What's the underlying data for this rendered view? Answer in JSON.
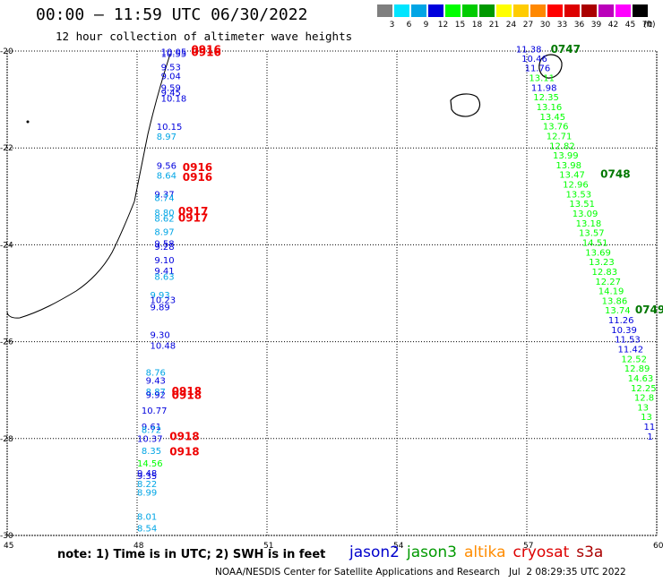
{
  "header": {
    "title": "00:00 – 11:59 UTC 06/30/2022",
    "subtitle": "12 hour collection of altimeter wave heights"
  },
  "colorbar": {
    "unit": "(ft)",
    "bins": [
      {
        "label": "3",
        "color": "#7f7f7f"
      },
      {
        "label": "6",
        "color": "#00e5ff"
      },
      {
        "label": "9",
        "color": "#00a5e5"
      },
      {
        "label": "12",
        "color": "#0000dd"
      },
      {
        "label": "15",
        "color": "#00ff00"
      },
      {
        "label": "18",
        "color": "#00cc00"
      },
      {
        "label": "21",
        "color": "#009900"
      },
      {
        "label": "24",
        "color": "#ffff00"
      },
      {
        "label": "27",
        "color": "#ffcc00"
      },
      {
        "label": "30",
        "color": "#ff8800"
      },
      {
        "label": "33",
        "color": "#ff0000"
      },
      {
        "label": "36",
        "color": "#dd0000"
      },
      {
        "label": "39",
        "color": "#aa0000"
      },
      {
        "label": "42",
        "color": "#bb00bb"
      },
      {
        "label": "45",
        "color": "#ff00ff"
      },
      {
        "label": "70",
        "color": "#000000"
      }
    ]
  },
  "footer": {
    "note": "note: 1) Time is in UTC; 2) SWH is in feet",
    "credit": "NOAA/NESDIS Center for Satellite Applications and Research   Jul  2 08:29:35 UTC 2022"
  },
  "legend": [
    {
      "name": "jason2",
      "color": "#0000cc"
    },
    {
      "name": "jason3",
      "color": "#009900"
    },
    {
      "name": "altika",
      "color": "#ff8c00"
    },
    {
      "name": "cryosat",
      "color": "#dd0000"
    },
    {
      "name": "s3a",
      "color": "#aa0000"
    }
  ],
  "chart_data": {
    "type": "scatter",
    "title": "12 hour collection of altimeter wave heights",
    "xlim": [
      45,
      60
    ],
    "ylim": [
      -30,
      -20
    ],
    "x_ticks": [
      45,
      48,
      51,
      54,
      57,
      60
    ],
    "y_ticks": [
      -20,
      -22,
      -24,
      -26,
      -28,
      -30
    ],
    "grid": true,
    "track_a": [
      {
        "lon": 48.55,
        "lat": -20.12,
        "v": "10.55",
        "c": "#0000dd"
      },
      {
        "lon": 48.55,
        "lat": -20.08,
        "v": "10.05",
        "c": "#0000dd"
      },
      {
        "lon": 48.55,
        "lat": -20.4,
        "v": "9.53",
        "c": "#0000dd"
      },
      {
        "lon": 48.55,
        "lat": -20.58,
        "v": "9.04",
        "c": "#0000dd"
      },
      {
        "lon": 48.55,
        "lat": -20.82,
        "v": "9.59",
        "c": "#0000dd"
      },
      {
        "lon": 48.55,
        "lat": -20.92,
        "v": "9.45",
        "c": "#0000dd"
      },
      {
        "lon": 48.55,
        "lat": -21.04,
        "v": "10.18",
        "c": "#0000dd"
      },
      {
        "lon": 48.45,
        "lat": -21.63,
        "v": "10.15",
        "c": "#0000dd"
      },
      {
        "lon": 48.45,
        "lat": -21.83,
        "v": "8.97",
        "c": "#00a5e5"
      },
      {
        "lon": 48.45,
        "lat": -22.43,
        "v": "9.56",
        "c": "#0000dd"
      },
      {
        "lon": 48.45,
        "lat": -22.63,
        "v": "8.64",
        "c": "#00a5e5"
      },
      {
        "lon": 48.4,
        "lat": -23.02,
        "v": "9.37",
        "c": "#0000dd"
      },
      {
        "lon": 48.4,
        "lat": -23.1,
        "v": "8.74",
        "c": "#00a5e5"
      },
      {
        "lon": 48.4,
        "lat": -23.4,
        "v": "8.80",
        "c": "#00a5e5"
      },
      {
        "lon": 48.4,
        "lat": -23.52,
        "v": "8.62",
        "c": "#00a5e5"
      },
      {
        "lon": 48.4,
        "lat": -23.8,
        "v": "8.97",
        "c": "#00a5e5"
      },
      {
        "lon": 48.4,
        "lat": -24.04,
        "v": "9.58",
        "c": "#0000dd"
      },
      {
        "lon": 48.4,
        "lat": -24.1,
        "v": "9.28",
        "c": "#0000dd"
      },
      {
        "lon": 48.4,
        "lat": -24.38,
        "v": "9.10",
        "c": "#0000dd"
      },
      {
        "lon": 48.4,
        "lat": -24.6,
        "v": "9.41",
        "c": "#0000dd"
      },
      {
        "lon": 48.4,
        "lat": -24.72,
        "v": "8.63",
        "c": "#00a5e5"
      },
      {
        "lon": 48.3,
        "lat": -25.1,
        "v": "9.93",
        "c": "#00a5e5"
      },
      {
        "lon": 48.3,
        "lat": -25.2,
        "v": "10.23",
        "c": "#0000dd"
      },
      {
        "lon": 48.3,
        "lat": -25.35,
        "v": "9.89",
        "c": "#0000dd"
      },
      {
        "lon": 48.3,
        "lat": -25.92,
        "v": "9.30",
        "c": "#0000dd"
      },
      {
        "lon": 48.3,
        "lat": -26.15,
        "v": "10.48",
        "c": "#0000dd"
      },
      {
        "lon": 48.2,
        "lat": -26.7,
        "v": "8.76",
        "c": "#00a5e5"
      },
      {
        "lon": 48.2,
        "lat": -26.87,
        "v": "9.43",
        "c": "#0000dd"
      },
      {
        "lon": 48.2,
        "lat": -27.1,
        "v": "8.87",
        "c": "#00a5e5"
      },
      {
        "lon": 48.2,
        "lat": -27.16,
        "v": "9.92",
        "c": "#0000dd"
      },
      {
        "lon": 48.1,
        "lat": -27.49,
        "v": "10.77",
        "c": "#0000dd"
      },
      {
        "lon": 48.1,
        "lat": -27.82,
        "v": "9.61",
        "c": "#0000dd"
      },
      {
        "lon": 48.1,
        "lat": -27.88,
        "v": "8.72",
        "c": "#00a5e5"
      },
      {
        "lon": 48.0,
        "lat": -28.07,
        "v": "10.37",
        "c": "#0000dd"
      },
      {
        "lon": 48.1,
        "lat": -28.32,
        "v": "8.35",
        "c": "#00a5e5"
      },
      {
        "lon": 48.0,
        "lat": -28.58,
        "v": "14.56",
        "c": "#00ff00"
      },
      {
        "lon": 48.0,
        "lat": -28.78,
        "v": "9.48",
        "c": "#0000dd"
      },
      {
        "lon": 48.0,
        "lat": -28.84,
        "v": "9.35",
        "c": "#0000dd"
      },
      {
        "lon": 48.0,
        "lat": -29.0,
        "v": "8.22",
        "c": "#00a5e5"
      },
      {
        "lon": 48.0,
        "lat": -29.18,
        "v": "8.99",
        "c": "#00a5e5"
      },
      {
        "lon": 48.0,
        "lat": -29.68,
        "v": "8.01",
        "c": "#00a5e5"
      },
      {
        "lon": 48.0,
        "lat": -29.92,
        "v": "8.54",
        "c": "#00a5e5"
      }
    ],
    "track_a_times": [
      {
        "lon": 49.25,
        "lat": -20.1,
        "t": "0916"
      },
      {
        "lon": 49.25,
        "lat": -20.05,
        "t": "0916"
      },
      {
        "lon": 49.05,
        "lat": -22.48,
        "t": "0916"
      },
      {
        "lon": 49.05,
        "lat": -22.68,
        "t": "0916"
      },
      {
        "lon": 48.95,
        "lat": -23.38,
        "t": "0917"
      },
      {
        "lon": 48.95,
        "lat": -23.52,
        "t": "0917"
      },
      {
        "lon": 48.8,
        "lat": -27.1,
        "t": "0918"
      },
      {
        "lon": 48.8,
        "lat": -27.18,
        "t": "0918"
      },
      {
        "lon": 48.75,
        "lat": -28.03,
        "t": "0918"
      },
      {
        "lon": 48.75,
        "lat": -28.35,
        "t": "0918"
      }
    ],
    "track_b": [
      {
        "lon": 56.75,
        "lat": -20.03,
        "v": "11.38",
        "c": "#0000dd"
      },
      {
        "lon": 56.88,
        "lat": -20.22,
        "v": "10.46",
        "c": "#0000dd"
      },
      {
        "lon": 56.95,
        "lat": -20.42,
        "v": "11.76",
        "c": "#0000dd"
      },
      {
        "lon": 57.05,
        "lat": -20.62,
        "v": "13.11",
        "c": "#00ff00"
      },
      {
        "lon": 57.1,
        "lat": -20.82,
        "v": "11.98",
        "c": "#0000dd"
      },
      {
        "lon": 57.15,
        "lat": -21.02,
        "v": "12.35",
        "c": "#00ff00"
      },
      {
        "lon": 57.22,
        "lat": -21.22,
        "v": "13.16",
        "c": "#00ff00"
      },
      {
        "lon": 57.3,
        "lat": -21.42,
        "v": "13.45",
        "c": "#00ff00"
      },
      {
        "lon": 57.37,
        "lat": -21.62,
        "v": "13.76",
        "c": "#00ff00"
      },
      {
        "lon": 57.45,
        "lat": -21.82,
        "v": "12.71",
        "c": "#00ff00"
      },
      {
        "lon": 57.52,
        "lat": -22.02,
        "v": "12.82",
        "c": "#00ff00"
      },
      {
        "lon": 57.6,
        "lat": -22.22,
        "v": "13.99",
        "c": "#00ff00"
      },
      {
        "lon": 57.67,
        "lat": -22.42,
        "v": "13.98",
        "c": "#00ff00"
      },
      {
        "lon": 57.75,
        "lat": -22.62,
        "v": "13.47",
        "c": "#00ff00"
      },
      {
        "lon": 57.83,
        "lat": -22.82,
        "v": "12.96",
        "c": "#00ff00"
      },
      {
        "lon": 57.9,
        "lat": -23.02,
        "v": "13.53",
        "c": "#00ff00"
      },
      {
        "lon": 57.98,
        "lat": -23.22,
        "v": "13.51",
        "c": "#00ff00"
      },
      {
        "lon": 58.05,
        "lat": -23.42,
        "v": "13.09",
        "c": "#00ff00"
      },
      {
        "lon": 58.13,
        "lat": -23.62,
        "v": "13.18",
        "c": "#00ff00"
      },
      {
        "lon": 58.2,
        "lat": -23.82,
        "v": "13.57",
        "c": "#00ff00"
      },
      {
        "lon": 58.28,
        "lat": -24.02,
        "v": "14.51",
        "c": "#00ff00"
      },
      {
        "lon": 58.35,
        "lat": -24.22,
        "v": "13.69",
        "c": "#00ff00"
      },
      {
        "lon": 58.43,
        "lat": -24.42,
        "v": "13.23",
        "c": "#00ff00"
      },
      {
        "lon": 58.5,
        "lat": -24.62,
        "v": "12.83",
        "c": "#00ff00"
      },
      {
        "lon": 58.58,
        "lat": -24.82,
        "v": "12.27",
        "c": "#00ff00"
      },
      {
        "lon": 58.65,
        "lat": -25.02,
        "v": "14.19",
        "c": "#00ff00"
      },
      {
        "lon": 58.73,
        "lat": -25.22,
        "v": "13.86",
        "c": "#00ff00"
      },
      {
        "lon": 58.8,
        "lat": -25.42,
        "v": "13.74",
        "c": "#00ff00"
      },
      {
        "lon": 58.88,
        "lat": -25.62,
        "v": "11.26",
        "c": "#0000dd"
      },
      {
        "lon": 58.95,
        "lat": -25.82,
        "v": "10.39",
        "c": "#0000dd"
      },
      {
        "lon": 59.03,
        "lat": -26.02,
        "v": "11.53",
        "c": "#0000dd"
      },
      {
        "lon": 59.1,
        "lat": -26.22,
        "v": "11.42",
        "c": "#0000dd"
      },
      {
        "lon": 59.18,
        "lat": -26.42,
        "v": "12.52",
        "c": "#00ff00"
      },
      {
        "lon": 59.25,
        "lat": -26.62,
        "v": "12.89",
        "c": "#00ff00"
      },
      {
        "lon": 59.33,
        "lat": -26.82,
        "v": "14.63",
        "c": "#00ff00"
      },
      {
        "lon": 59.4,
        "lat": -27.02,
        "v": "12.25",
        "c": "#00ff00"
      },
      {
        "lon": 59.48,
        "lat": -27.22,
        "v": "12.8",
        "c": "#00ff00"
      },
      {
        "lon": 59.55,
        "lat": -27.42,
        "v": "13",
        "c": "#00ff00"
      },
      {
        "lon": 59.63,
        "lat": -27.62,
        "v": "13",
        "c": "#00ff00"
      },
      {
        "lon": 59.7,
        "lat": -27.82,
        "v": "11",
        "c": "#0000dd"
      },
      {
        "lon": 59.78,
        "lat": -28.02,
        "v": "1",
        "c": "#0000dd"
      }
    ],
    "track_b_times": [
      {
        "lon": 57.55,
        "lat": -20.04,
        "t": "0747"
      },
      {
        "lon": 58.7,
        "lat": -22.62,
        "t": "0748"
      },
      {
        "lon": 59.5,
        "lat": -25.42,
        "t": "0749"
      }
    ]
  }
}
